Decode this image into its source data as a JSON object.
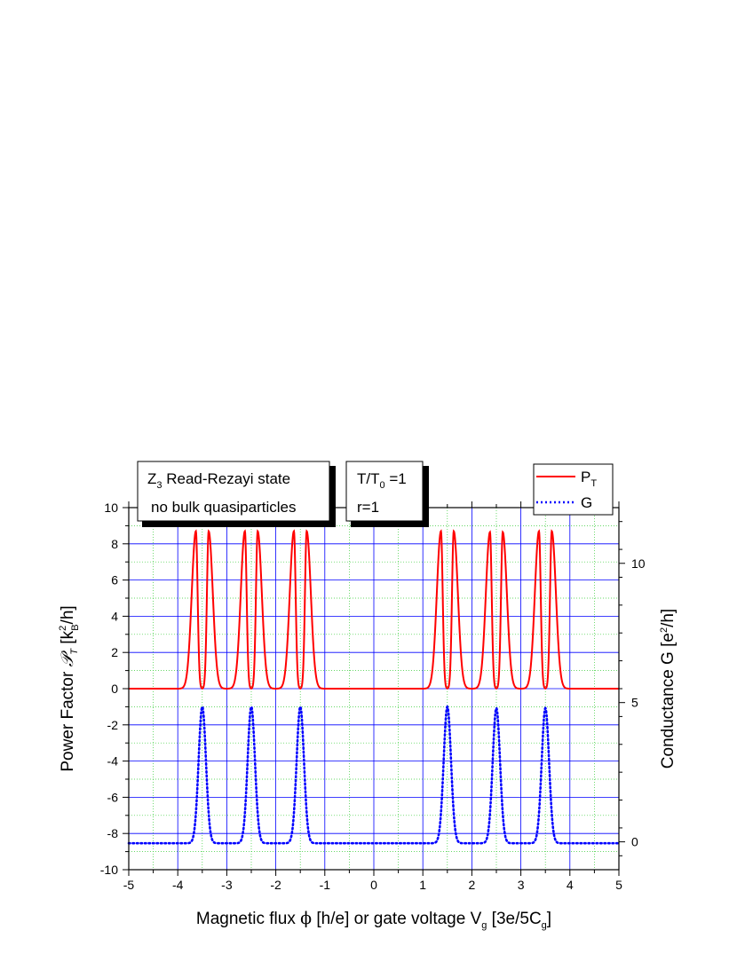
{
  "chart_data": {
    "type": "line",
    "xlim": [
      -5,
      5
    ],
    "ylim": [
      -10,
      10
    ],
    "y2lim": [
      -1,
      12
    ],
    "x_ticks": [
      -5,
      -4,
      -3,
      -2,
      -1,
      0,
      1,
      2,
      3,
      4,
      5
    ],
    "y_ticks": [
      -10,
      -8,
      -6,
      -4,
      -2,
      0,
      2,
      4,
      6,
      8,
      10
    ],
    "y2_ticks": [
      0,
      5,
      10
    ],
    "grid": true,
    "legend_position": "top-right",
    "xlabel": {
      "pre": "Magnetic flux ",
      "phi": "ϕ",
      "mid": " [h/e] or gate voltage V",
      "sub1": "g",
      "mid2": " [3e/5C",
      "sub2": "g",
      "post": "]"
    },
    "ylabel": {
      "pre": "Power Factor ",
      "sym": "𝒫",
      "sym_sub": "T",
      "mid": " [k",
      "sup": "2",
      "sub": "B",
      "post": "/h]"
    },
    "y2label": {
      "pre": "Conductance G [e",
      "sup": "2",
      "post": "/h]"
    },
    "annotations": [
      {
        "id": "state",
        "lines": [
          {
            "pre": "Z",
            "sub": "3",
            "post": " Read-Rezayi state"
          },
          {
            "pre": "no bulk quasiparticles",
            "sub": "",
            "post": ""
          }
        ]
      },
      {
        "id": "params",
        "lines": [
          {
            "pre": "T/T",
            "sub": "0",
            "post": " =1"
          },
          {
            "pre": "r=1",
            "sub": "",
            "post": ""
          }
        ]
      }
    ],
    "series": [
      {
        "name": "P",
        "name_sub": "T",
        "axis": "left",
        "color": "#ff0000",
        "style": "solid",
        "peak_centers": [
          -3.5,
          -2.5,
          -1.5,
          1.5,
          2.5,
          3.5
        ],
        "peak_heights": [
          8.7,
          8.7,
          8.7,
          8.7,
          8.65,
          8.7
        ],
        "lobe_offset": 0.13,
        "baseline": 0
      },
      {
        "name": "G",
        "name_sub": "",
        "axis": "right",
        "color": "#0000ff",
        "style": "dotted",
        "peak_centers": [
          -3.5,
          -2.5,
          -1.5,
          1.5,
          2.5,
          3.5
        ],
        "peak_heights": [
          4.9,
          4.9,
          4.9,
          4.9,
          4.85,
          4.85
        ],
        "baseline": -0.05
      }
    ]
  }
}
